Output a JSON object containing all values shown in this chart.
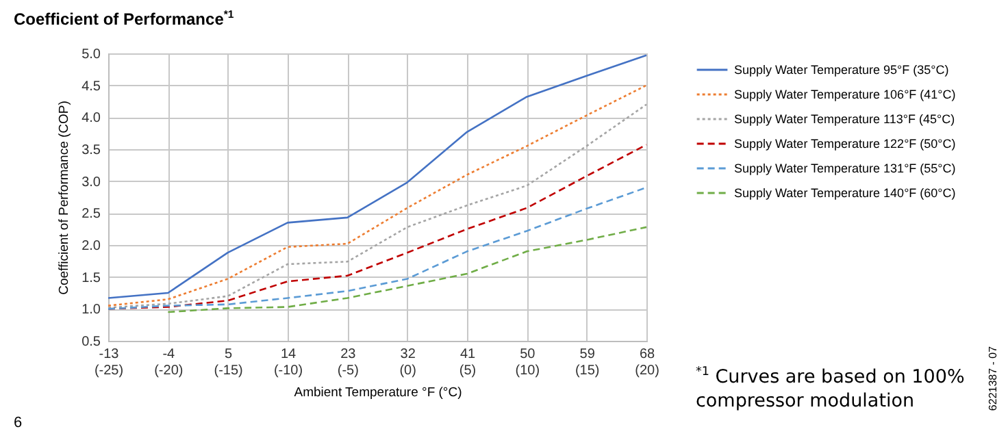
{
  "chart_data": {
    "type": "line",
    "title": "Coefficient of Performance$^{*1}$",
    "xlabel": "Ambient Temperature °F (°C)",
    "ylabel": "Coefficient of Performance (COP)",
    "categories": [
      "-13 (-25)",
      "-4 (-20)",
      "5 (-15)",
      "14 (-10)",
      "23 (-5)",
      "32 (0)",
      "41 (5)",
      "50 (10)",
      "59 (15)",
      "68 (20)"
    ],
    "series": [
      {
        "name": "Supply Water Temperature 95°F (35°C)",
        "color": "#4472c4",
        "line_style": "solid",
        "values": [
          1.17,
          1.25,
          1.88,
          2.35,
          2.43,
          2.98,
          3.77,
          4.32,
          4.65,
          4.97
        ]
      },
      {
        "name": "Supply Water Temperature 106°F (41°C)",
        "color": "#ed7d31",
        "line_style": "dotted",
        "values": [
          1.05,
          1.15,
          1.47,
          1.97,
          2.02,
          2.58,
          3.1,
          3.55,
          4.03,
          4.5
        ]
      },
      {
        "name": "Supply Water Temperature 113°F (45°C)",
        "color": "#a5a5a5",
        "line_style": "dotted",
        "values": [
          1.02,
          1.08,
          1.2,
          1.7,
          1.74,
          2.28,
          2.62,
          2.93,
          3.55,
          4.2
        ]
      },
      {
        "name": "Supply Water Temperature 122°F (50°C)",
        "color": "#c00000",
        "line_style": "dashed",
        "values": [
          1.0,
          1.03,
          1.13,
          1.43,
          1.52,
          1.88,
          2.25,
          2.58,
          3.08,
          3.57
        ]
      },
      {
        "name": "Supply Water Temperature 131°F (55°C)",
        "color": "#5b9bd5",
        "line_style": "dashed",
        "values": [
          1.0,
          1.05,
          1.07,
          1.17,
          1.28,
          1.47,
          1.9,
          2.22,
          2.57,
          2.9
        ]
      },
      {
        "name": "Supply Water Temperature 140°F (60°C)",
        "color": "#70ad47",
        "line_style": "dashed",
        "values": [
          null,
          0.95,
          1.01,
          1.03,
          1.17,
          1.36,
          1.55,
          1.9,
          2.08,
          2.28
        ]
      }
    ],
    "ylim": [
      0.5,
      5.0
    ],
    "yticks": [
      {
        "value": 0.5,
        "label": "0.5"
      },
      {
        "value": 1.0,
        "label": "1.0"
      },
      {
        "value": 1.5,
        "label": "1.5"
      },
      {
        "value": 2.0,
        "label": "2.0"
      },
      {
        "value": 2.5,
        "label": "2.5"
      },
      {
        "value": 3.0,
        "label": "3.0"
      },
      {
        "value": 3.5,
        "label": "3.5"
      },
      {
        "value": 4.0,
        "label": "4.0"
      },
      {
        "value": 4.5,
        "label": "4.5"
      },
      {
        "value": 5.0,
        "label": "5.0"
      }
    ],
    "grid": true,
    "legend": "right",
    "marker": "none",
    "annotations": [
      "$^{*1}$ Curves are based on 100% compressor modulation",
      "6221387 - 07",
      "6"
    ]
  }
}
